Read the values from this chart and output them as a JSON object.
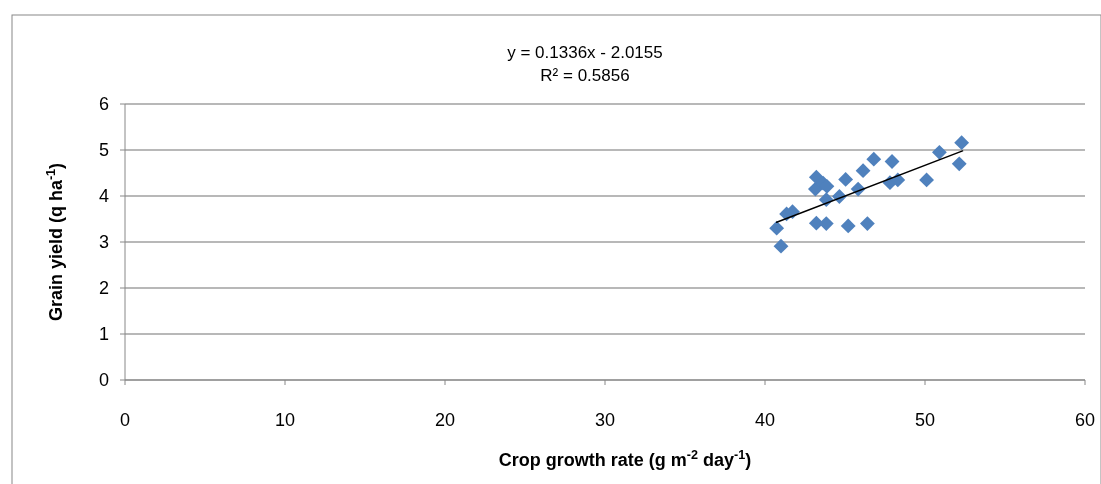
{
  "chart_data": {
    "type": "scatter",
    "xlabel": "Crop growth rate (g m$^{-2}$ day$^{-1}$)",
    "ylabel": "Grain  yield (q ha$^{-1}$)",
    "annotations": [
      "y = 0.1336x - 2.0155",
      "R² = 0.5856"
    ],
    "xlim": [
      0,
      60
    ],
    "xticks": [
      0,
      10,
      20,
      30,
      40,
      50,
      60
    ],
    "ylim": [
      0,
      6
    ],
    "yticks": [
      0,
      1,
      2,
      3,
      4,
      5,
      6
    ],
    "grid": "y",
    "marker": "diamond",
    "series": [
      {
        "color": "#4f81bd",
        "x": [
          40.73,
          41.0,
          41.35,
          41.72,
          43.21,
          43.83,
          45.2,
          46.4,
          43.15,
          43.21,
          43.63,
          43.87,
          43.83,
          44.65,
          45.04,
          45.82,
          46.13,
          46.8,
          47.94,
          47.81,
          48.3,
          50.1,
          50.9,
          52.14,
          52.29
        ],
        "values": [
          3.3,
          2.91,
          3.61,
          3.66,
          3.41,
          3.4,
          3.35,
          3.4,
          4.15,
          4.41,
          4.28,
          4.21,
          3.92,
          3.99,
          4.36,
          4.15,
          4.55,
          4.8,
          4.75,
          4.29,
          4.35,
          4.35,
          4.95,
          4.7,
          5.16
        ]
      },
      {
        "type": "line",
        "color": "#000000",
        "x": [
          40.73,
          52.35
        ],
        "values": [
          3.43,
          4.98
        ],
        "marker": "none",
        "line_style": "solid"
      }
    ]
  }
}
